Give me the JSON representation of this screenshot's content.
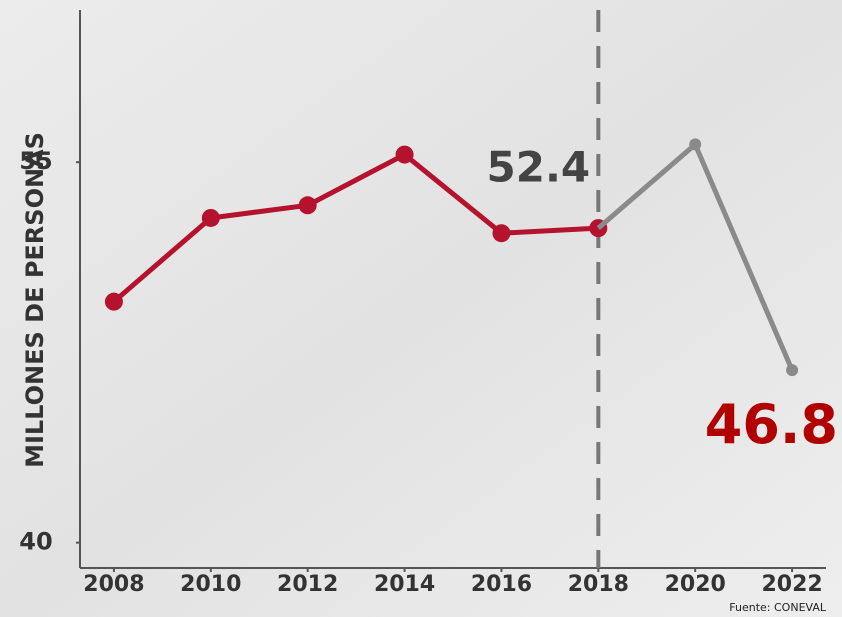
{
  "chart_data": {
    "type": "line",
    "y_label": "MILLONES DE PERSONAS",
    "source": "Fuente: CONEVAL",
    "xlim": [
      2007.3,
      2022.7
    ],
    "xticks": [
      2008,
      2010,
      2012,
      2014,
      2016,
      2018,
      2020,
      2022
    ],
    "ylim": [
      39,
      61
    ],
    "yticks": [
      40,
      55
    ],
    "series": [
      {
        "color": "#b5122e",
        "x": [
          2008,
          2010,
          2012,
          2014,
          2016,
          2018
        ],
        "values": [
          49.5,
          52.8,
          53.3,
          55.3,
          52.2,
          52.4
        ],
        "markers": true
      },
      {
        "color": "#8a8a8a",
        "x": [
          2018,
          2020,
          2022
        ],
        "values": [
          52.4,
          55.7,
          46.8
        ],
        "markers": true
      }
    ]
  }
}
